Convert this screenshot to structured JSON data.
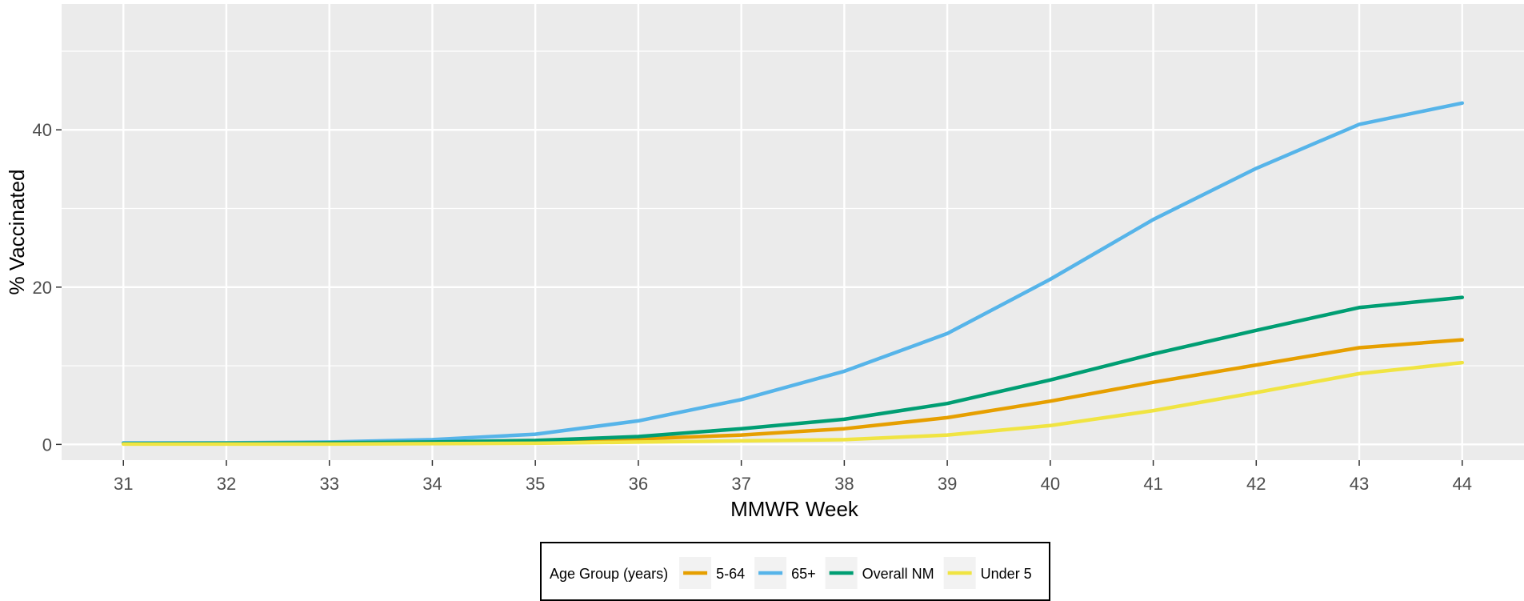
{
  "chart_data": {
    "type": "line",
    "title": "",
    "xlabel": "MMWR Week",
    "ylabel": "% Vaccinated",
    "x": [
      31,
      32,
      33,
      34,
      35,
      36,
      37,
      38,
      39,
      40,
      41,
      42,
      43,
      44
    ],
    "x_ticks": [
      "31",
      "32",
      "33",
      "34",
      "35",
      "36",
      "37",
      "38",
      "39",
      "40",
      "41",
      "42",
      "43",
      "44"
    ],
    "y_ticks": [
      "0",
      "20",
      "40"
    ],
    "xlim": [
      30.4,
      44.6
    ],
    "ylim": [
      -2,
      56
    ],
    "grid": true,
    "legend": {
      "title": "Age Group (years)",
      "placement": "bottom"
    },
    "series": [
      {
        "name": "5-64",
        "color": "#E69F00",
        "values": [
          0.1,
          0.1,
          0.15,
          0.2,
          0.35,
          0.7,
          1.2,
          2.0,
          3.4,
          5.5,
          7.9,
          10.1,
          12.3,
          13.3
        ]
      },
      {
        "name": "65+",
        "color": "#56B4E9",
        "values": [
          0.2,
          0.2,
          0.3,
          0.6,
          1.3,
          3.0,
          5.7,
          9.3,
          14.1,
          21.0,
          28.6,
          35.1,
          40.7,
          43.4
        ]
      },
      {
        "name": "Overall NM",
        "color": "#009E73",
        "values": [
          0.1,
          0.15,
          0.2,
          0.3,
          0.5,
          1.0,
          2.0,
          3.2,
          5.2,
          8.2,
          11.5,
          14.5,
          17.4,
          18.7
        ]
      },
      {
        "name": "Under 5",
        "color": "#F0E442",
        "values": [
          0.05,
          0.05,
          0.05,
          0.1,
          0.15,
          0.3,
          0.45,
          0.6,
          1.2,
          2.4,
          4.3,
          6.6,
          9.0,
          10.4
        ]
      }
    ]
  }
}
